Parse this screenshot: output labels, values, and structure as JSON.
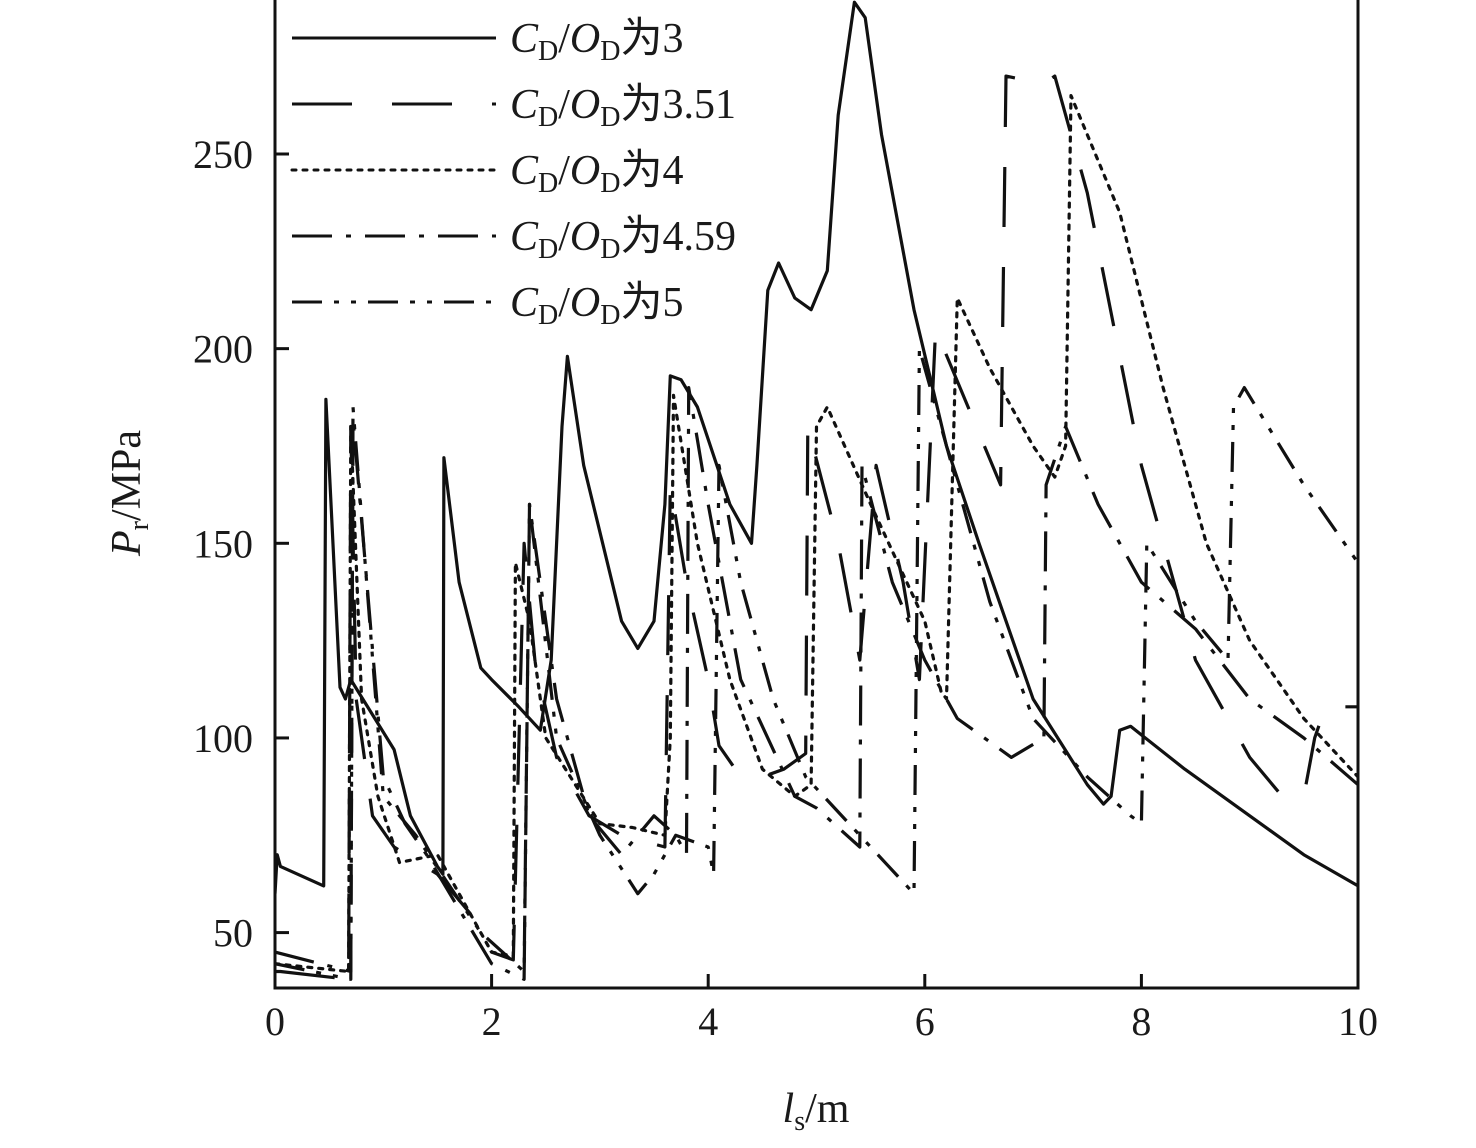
{
  "chart_data": {
    "type": "line",
    "xlabel": {
      "main": "l",
      "sub": "s",
      "unit": "/m"
    },
    "ylabel": {
      "main": "P",
      "sub": "r",
      "unit": "/MPa"
    },
    "xlim": [
      0,
      10
    ],
    "ylim": [
      36,
      290
    ],
    "xticks": [
      0,
      2,
      4,
      6,
      8,
      10
    ],
    "yticks": [
      50,
      100,
      150,
      200,
      250
    ],
    "grid": false,
    "legend_position": "top-left",
    "legend_label_parts": {
      "c": "C",
      "d1": "D",
      "slash": "/",
      "o": "O",
      "d2": "D",
      "wei": "为"
    },
    "series": [
      {
        "ratio": "3",
        "style": "solid",
        "points": [
          [
            0,
            60
          ],
          [
            0.02,
            70
          ],
          [
            0.05,
            67
          ],
          [
            0.45,
            62
          ],
          [
            0.47,
            187
          ],
          [
            0.6,
            113
          ],
          [
            0.65,
            110
          ],
          [
            0.7,
            115
          ],
          [
            1.1,
            97
          ],
          [
            1.25,
            80
          ],
          [
            1.5,
            67
          ],
          [
            1.55,
            65
          ],
          [
            1.56,
            172
          ],
          [
            1.7,
            140
          ],
          [
            1.9,
            118
          ],
          [
            2.0,
            115
          ],
          [
            2.25,
            108
          ],
          [
            2.45,
            102
          ],
          [
            2.55,
            120
          ],
          [
            2.65,
            180
          ],
          [
            2.7,
            198
          ],
          [
            2.85,
            170
          ],
          [
            3.2,
            130
          ],
          [
            3.35,
            123
          ],
          [
            3.5,
            130
          ],
          [
            3.6,
            160
          ],
          [
            3.65,
            193
          ],
          [
            3.75,
            192
          ],
          [
            3.9,
            185
          ],
          [
            4.2,
            160
          ],
          [
            4.4,
            150
          ],
          [
            4.45,
            170
          ],
          [
            4.55,
            215
          ],
          [
            4.65,
            222
          ],
          [
            4.8,
            213
          ],
          [
            4.95,
            210
          ],
          [
            5.1,
            220
          ],
          [
            5.2,
            260
          ],
          [
            5.35,
            289
          ],
          [
            5.45,
            285
          ],
          [
            5.6,
            255
          ],
          [
            5.9,
            210
          ],
          [
            6.2,
            175
          ],
          [
            6.5,
            150
          ],
          [
            7.0,
            110
          ],
          [
            7.5,
            88
          ],
          [
            7.65,
            83
          ],
          [
            7.72,
            85
          ],
          [
            7.8,
            102
          ],
          [
            7.9,
            103
          ],
          [
            8.4,
            92
          ],
          [
            9.0,
            80
          ],
          [
            9.5,
            70
          ],
          [
            10,
            62
          ]
        ]
      },
      {
        "ratio": "3.51",
        "style": "long-dash",
        "points": [
          [
            0,
            40
          ],
          [
            0.05,
            40
          ],
          [
            0.68,
            38
          ],
          [
            0.7,
            180
          ],
          [
            0.75,
            110
          ],
          [
            0.9,
            80
          ],
          [
            1.1,
            72
          ],
          [
            1.5,
            65
          ],
          [
            1.8,
            55
          ],
          [
            2.0,
            45
          ],
          [
            2.2,
            43
          ],
          [
            2.3,
            150
          ],
          [
            2.4,
            120
          ],
          [
            2.6,
            95
          ],
          [
            2.9,
            80
          ],
          [
            3.2,
            75
          ],
          [
            3.6,
            72
          ],
          [
            3.65,
            165
          ],
          [
            3.8,
            140
          ],
          [
            4.0,
            115
          ],
          [
            4.1,
            98
          ],
          [
            4.25,
            92
          ],
          [
            4.5,
            90
          ],
          [
            4.7,
            92
          ],
          [
            4.9,
            96
          ],
          [
            4.92,
            180
          ],
          [
            5.2,
            150
          ],
          [
            5.4,
            120
          ],
          [
            5.55,
            170
          ],
          [
            5.8,
            140
          ],
          [
            5.95,
            115
          ],
          [
            6.1,
            205
          ],
          [
            6.4,
            185
          ],
          [
            6.7,
            165
          ],
          [
            6.75,
            270
          ],
          [
            7.1,
            268
          ],
          [
            7.2,
            270
          ],
          [
            7.5,
            240
          ],
          [
            8.0,
            170
          ],
          [
            8.5,
            120
          ],
          [
            9.0,
            95
          ],
          [
            9.3,
            85
          ],
          [
            9.5,
            85
          ],
          [
            9.6,
            100
          ],
          [
            9.7,
            108
          ],
          [
            10,
            108
          ]
        ]
      },
      {
        "ratio": "4",
        "style": "dotted",
        "points": [
          [
            0,
            42
          ],
          [
            0.68,
            40
          ],
          [
            0.7,
            180
          ],
          [
            0.8,
            110
          ],
          [
            0.95,
            85
          ],
          [
            1.15,
            68
          ],
          [
            1.5,
            70
          ],
          [
            2.0,
            45
          ],
          [
            2.2,
            44
          ],
          [
            2.22,
            145
          ],
          [
            2.35,
            130
          ],
          [
            2.5,
            100
          ],
          [
            3.0,
            78
          ],
          [
            3.3,
            77
          ],
          [
            3.6,
            75
          ],
          [
            3.65,
            100
          ],
          [
            3.68,
            188
          ],
          [
            3.9,
            150
          ],
          [
            4.2,
            115
          ],
          [
            4.5,
            92
          ],
          [
            4.8,
            85
          ],
          [
            4.95,
            88
          ],
          [
            5.0,
            180
          ],
          [
            5.1,
            185
          ],
          [
            5.5,
            160
          ],
          [
            6.0,
            130
          ],
          [
            6.15,
            112
          ],
          [
            6.2,
            110
          ],
          [
            6.3,
            213
          ],
          [
            6.6,
            195
          ],
          [
            7.0,
            175
          ],
          [
            7.2,
            167
          ],
          [
            7.3,
            175
          ],
          [
            7.35,
            265
          ],
          [
            7.8,
            235
          ],
          [
            8.2,
            190
          ],
          [
            8.6,
            150
          ],
          [
            9.0,
            125
          ],
          [
            9.5,
            105
          ],
          [
            10,
            90
          ]
        ]
      },
      {
        "ratio": "4.59",
        "style": "dash-dot",
        "points": [
          [
            0,
            45
          ],
          [
            0.7,
            40
          ],
          [
            0.72,
            182
          ],
          [
            1.0,
            90
          ],
          [
            1.2,
            78
          ],
          [
            1.4,
            70
          ],
          [
            2.0,
            42
          ],
          [
            2.3,
            38
          ],
          [
            2.35,
            160
          ],
          [
            2.6,
            110
          ],
          [
            2.9,
            80
          ],
          [
            3.2,
            70
          ],
          [
            3.5,
            80
          ],
          [
            3.7,
            75
          ],
          [
            3.8,
            70
          ],
          [
            3.82,
            190
          ],
          [
            4.0,
            160
          ],
          [
            4.3,
            115
          ],
          [
            4.8,
            85
          ],
          [
            5.0,
            82
          ],
          [
            5.4,
            72
          ],
          [
            5.42,
            170
          ],
          [
            5.7,
            140
          ],
          [
            6.0,
            120
          ],
          [
            6.3,
            105
          ],
          [
            6.8,
            95
          ],
          [
            7.1,
            100
          ],
          [
            7.12,
            165
          ],
          [
            7.3,
            180
          ],
          [
            7.6,
            160
          ],
          [
            8.0,
            140
          ],
          [
            8.5,
            128
          ],
          [
            9.0,
            110
          ],
          [
            9.5,
            100
          ],
          [
            10,
            88
          ]
        ]
      },
      {
        "ratio": "5",
        "style": "dash-dot-dot",
        "points": [
          [
            0,
            42
          ],
          [
            0.7,
            38
          ],
          [
            0.72,
            185
          ],
          [
            1.0,
            85
          ],
          [
            1.3,
            75
          ],
          [
            1.9,
            50
          ],
          [
            2.3,
            40
          ],
          [
            2.35,
            160
          ],
          [
            2.6,
            100
          ],
          [
            3.0,
            75
          ],
          [
            3.35,
            60
          ],
          [
            3.5,
            65
          ],
          [
            3.7,
            75
          ],
          [
            4.0,
            72
          ],
          [
            4.05,
            65
          ],
          [
            4.1,
            170
          ],
          [
            4.3,
            140
          ],
          [
            4.6,
            110
          ],
          [
            4.9,
            90
          ],
          [
            5.5,
            72
          ],
          [
            5.9,
            60
          ],
          [
            5.95,
            200
          ],
          [
            6.2,
            175
          ],
          [
            6.6,
            135
          ],
          [
            7.0,
            105
          ],
          [
            7.5,
            90
          ],
          [
            7.9,
            80
          ],
          [
            8.0,
            78
          ],
          [
            8.05,
            150
          ],
          [
            8.5,
            130
          ],
          [
            8.8,
            120
          ],
          [
            8.85,
            185
          ],
          [
            8.95,
            190
          ],
          [
            9.5,
            165
          ],
          [
            10,
            145
          ]
        ]
      }
    ]
  }
}
